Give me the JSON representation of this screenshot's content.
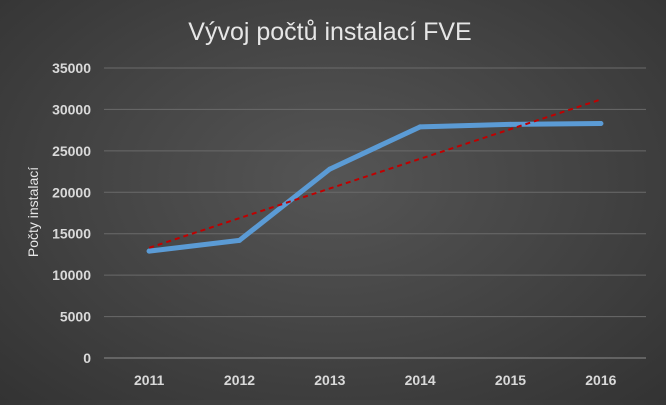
{
  "chart_data": {
    "type": "line",
    "title": "Vývoj počtů instalací FVE",
    "xlabel": "",
    "ylabel": "Počty instalací",
    "categories": [
      "2011",
      "2012",
      "2013",
      "2014",
      "2015",
      "2016"
    ],
    "series": [
      {
        "values": [
          12900,
          14200,
          22800,
          27900,
          28200,
          28300
        ],
        "color": "#5b9bd5"
      }
    ],
    "trendline": {
      "type": "linear",
      "start": 13300,
      "end": 31200,
      "color": "#c00000",
      "style": "dashed"
    },
    "ylim": [
      0,
      35000
    ],
    "yticks": [
      "0",
      "5000",
      "10000",
      "15000",
      "20000",
      "25000",
      "30000",
      "35000"
    ],
    "grid": true,
    "legend": "none"
  },
  "colors": {
    "text": "#d9d9d9",
    "tick_text": "#d9d9d9",
    "grid": "#6a6a6a",
    "axis": "#8c8c8c"
  }
}
